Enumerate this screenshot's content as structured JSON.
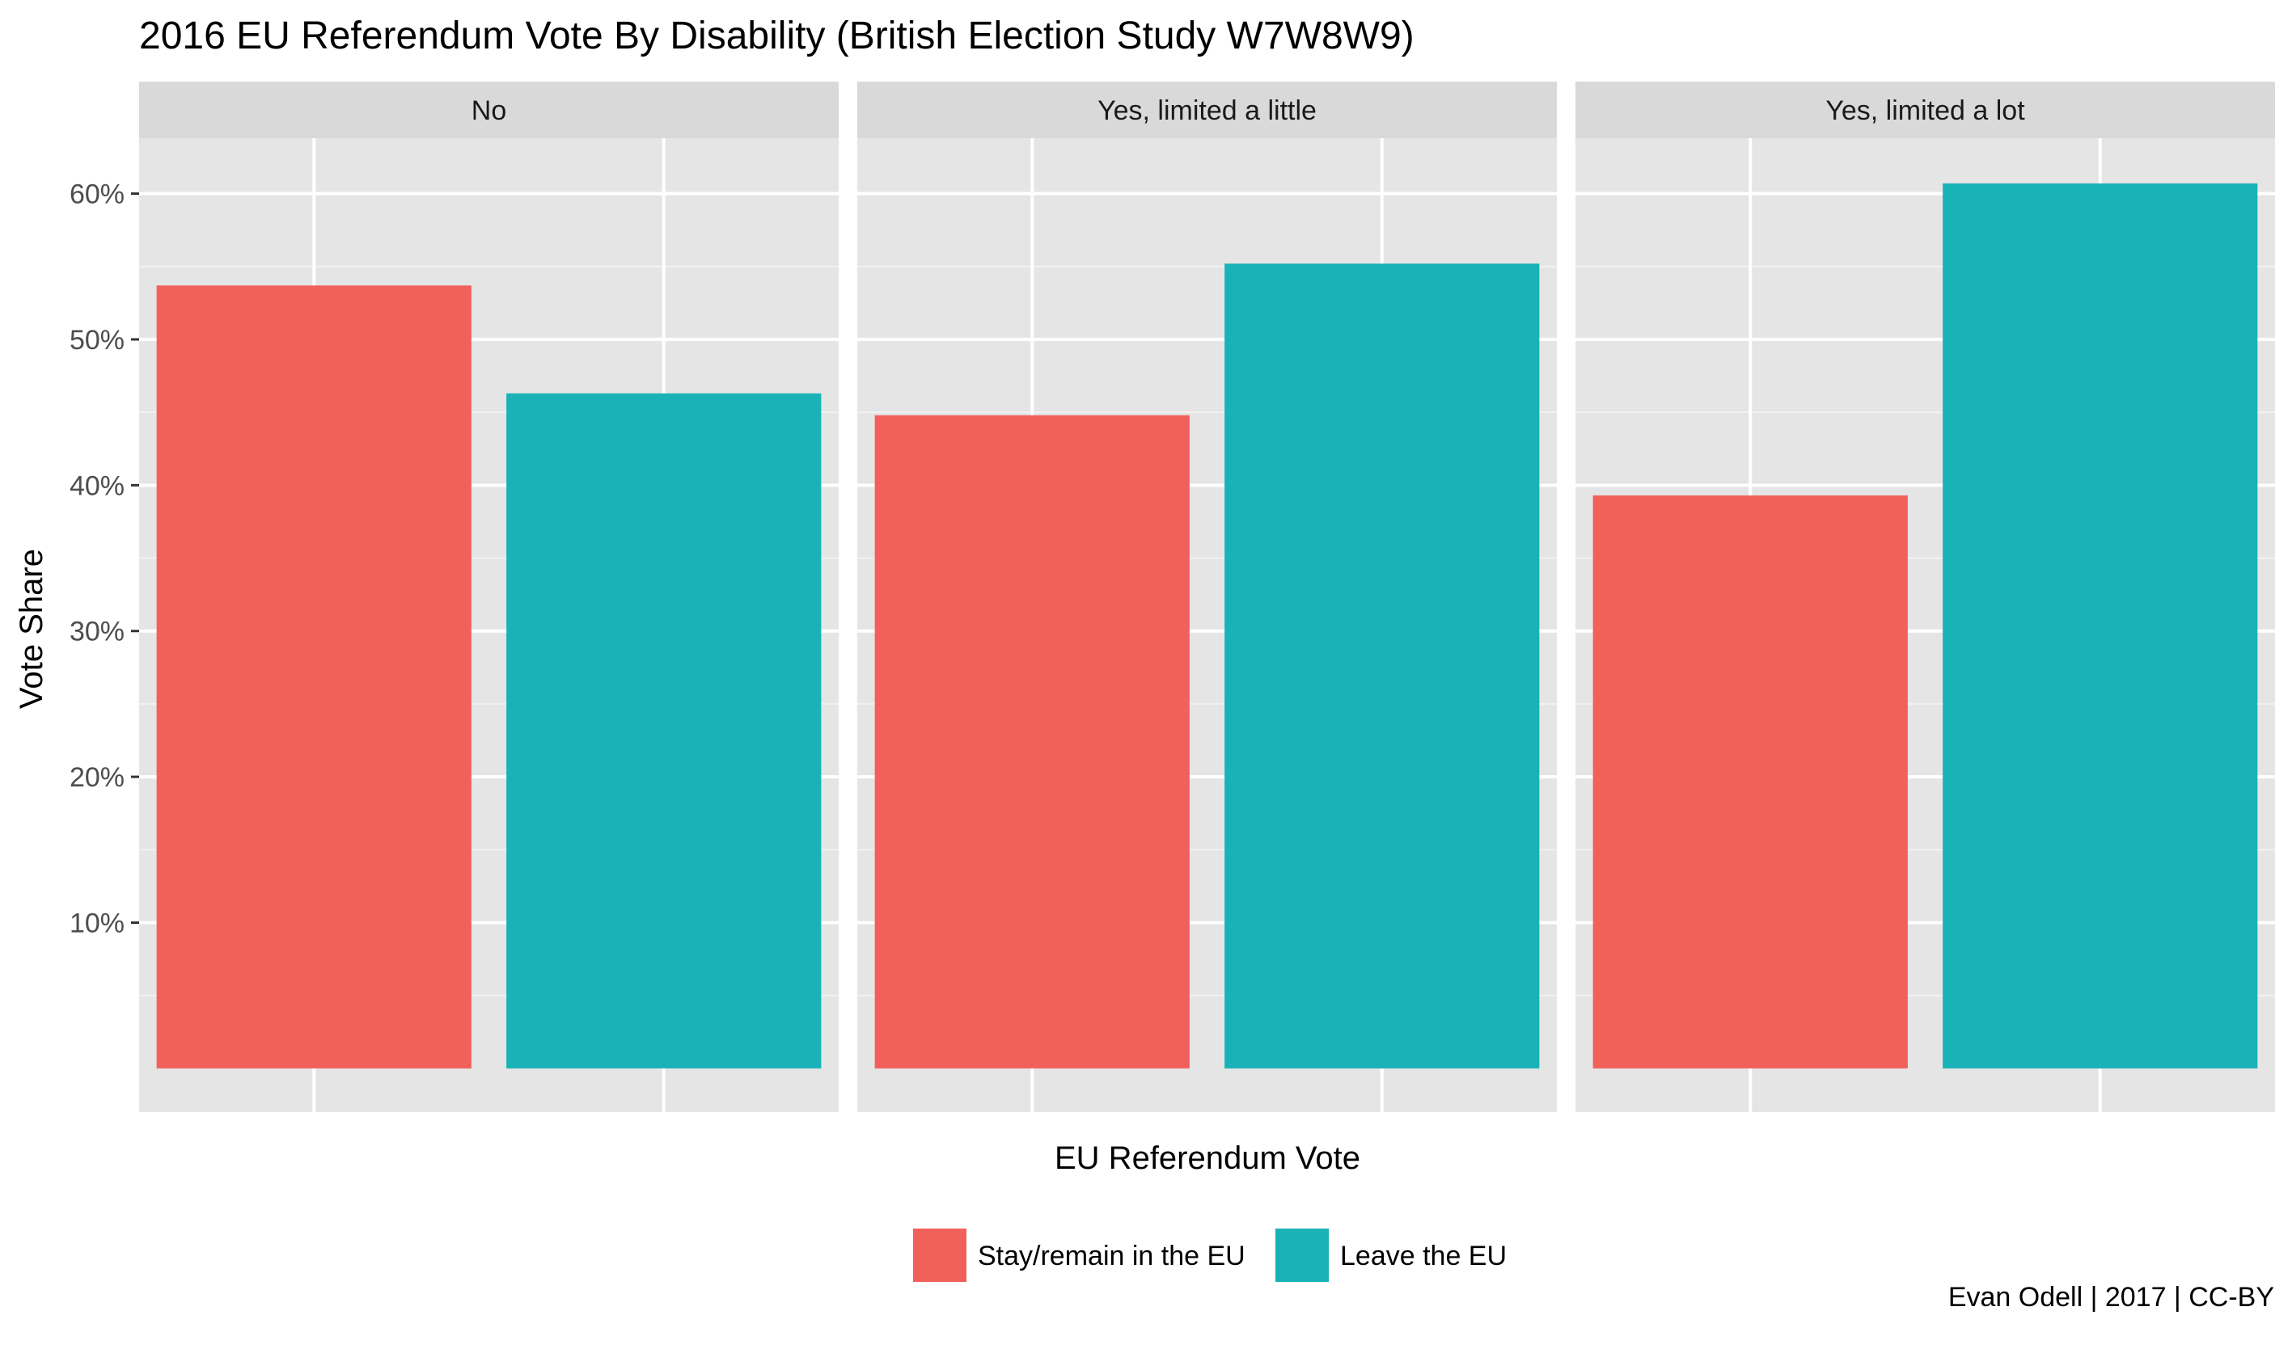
{
  "chart_data": {
    "type": "bar",
    "title": "2016 EU Referendum Vote By Disability (British Election Study W7W8W9)",
    "xlabel": "EU Referendum Vote",
    "ylabel": "Vote Share",
    "ylim": [
      -3,
      63.8
    ],
    "yticks": [
      10,
      20,
      30,
      40,
      50,
      60
    ],
    "ytick_labels": [
      "10%",
      "20%",
      "30%",
      "40%",
      "50%",
      "60%"
    ],
    "grid": true,
    "legend_position": "bottom",
    "categories": [
      "Stay/remain in the EU",
      "Leave the EU"
    ],
    "colors": {
      "Stay/remain in the EU": "#F2605C",
      "Leave the EU": "#19B3B7"
    },
    "panels": [
      {
        "label": "No",
        "values": [
          53.7,
          46.3
        ]
      },
      {
        "label": "Yes, limited a little",
        "values": [
          44.8,
          55.2
        ]
      },
      {
        "label": "Yes, limited a lot",
        "values": [
          39.3,
          60.7
        ]
      }
    ],
    "caption": "Evan Odell | 2017 | CC-BY"
  }
}
